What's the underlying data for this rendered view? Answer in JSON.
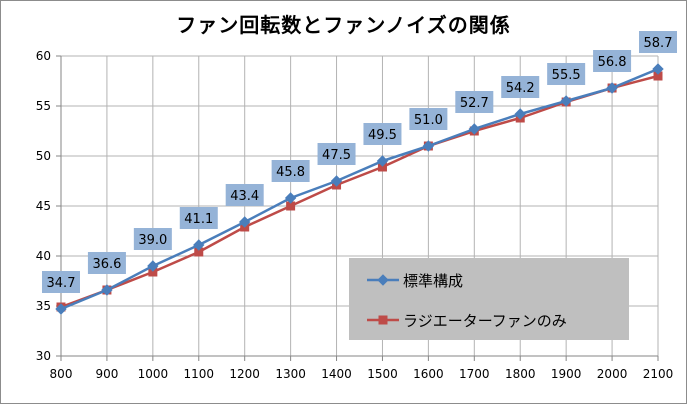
{
  "chart_data": {
    "type": "line",
    "title": "ファン回転数とファンノイズの関係",
    "xlabel": "",
    "ylabel": "",
    "categories": [
      "800",
      "900",
      "1000",
      "1100",
      "1200",
      "1300",
      "1400",
      "1500",
      "1600",
      "1700",
      "1800",
      "1900",
      "2000",
      "2100"
    ],
    "ylim": [
      30,
      60
    ],
    "yticks": [
      30,
      35,
      40,
      45,
      50,
      55,
      60
    ],
    "grid": true,
    "legend_position": "bottom-right",
    "series": [
      {
        "name": "標準構成",
        "color": "#4a7ebb",
        "marker": "diamond",
        "values": [
          34.7,
          36.6,
          39.0,
          41.1,
          43.4,
          45.8,
          47.5,
          49.5,
          51.0,
          52.7,
          54.2,
          55.5,
          56.8,
          58.7
        ],
        "data_labels": [
          "34.7",
          "36.6",
          "39.0",
          "41.1",
          "43.4",
          "45.8",
          "47.5",
          "49.5",
          "51.0",
          "52.7",
          "54.2",
          "55.5",
          "56.8",
          "58.7"
        ]
      },
      {
        "name": "ラジエーターファンのみ",
        "color": "#be4b48",
        "marker": "square",
        "values": [
          34.9,
          36.6,
          38.4,
          40.4,
          42.9,
          45.0,
          47.1,
          48.9,
          51.0,
          52.5,
          53.8,
          55.4,
          56.8,
          58.0
        ]
      }
    ]
  }
}
